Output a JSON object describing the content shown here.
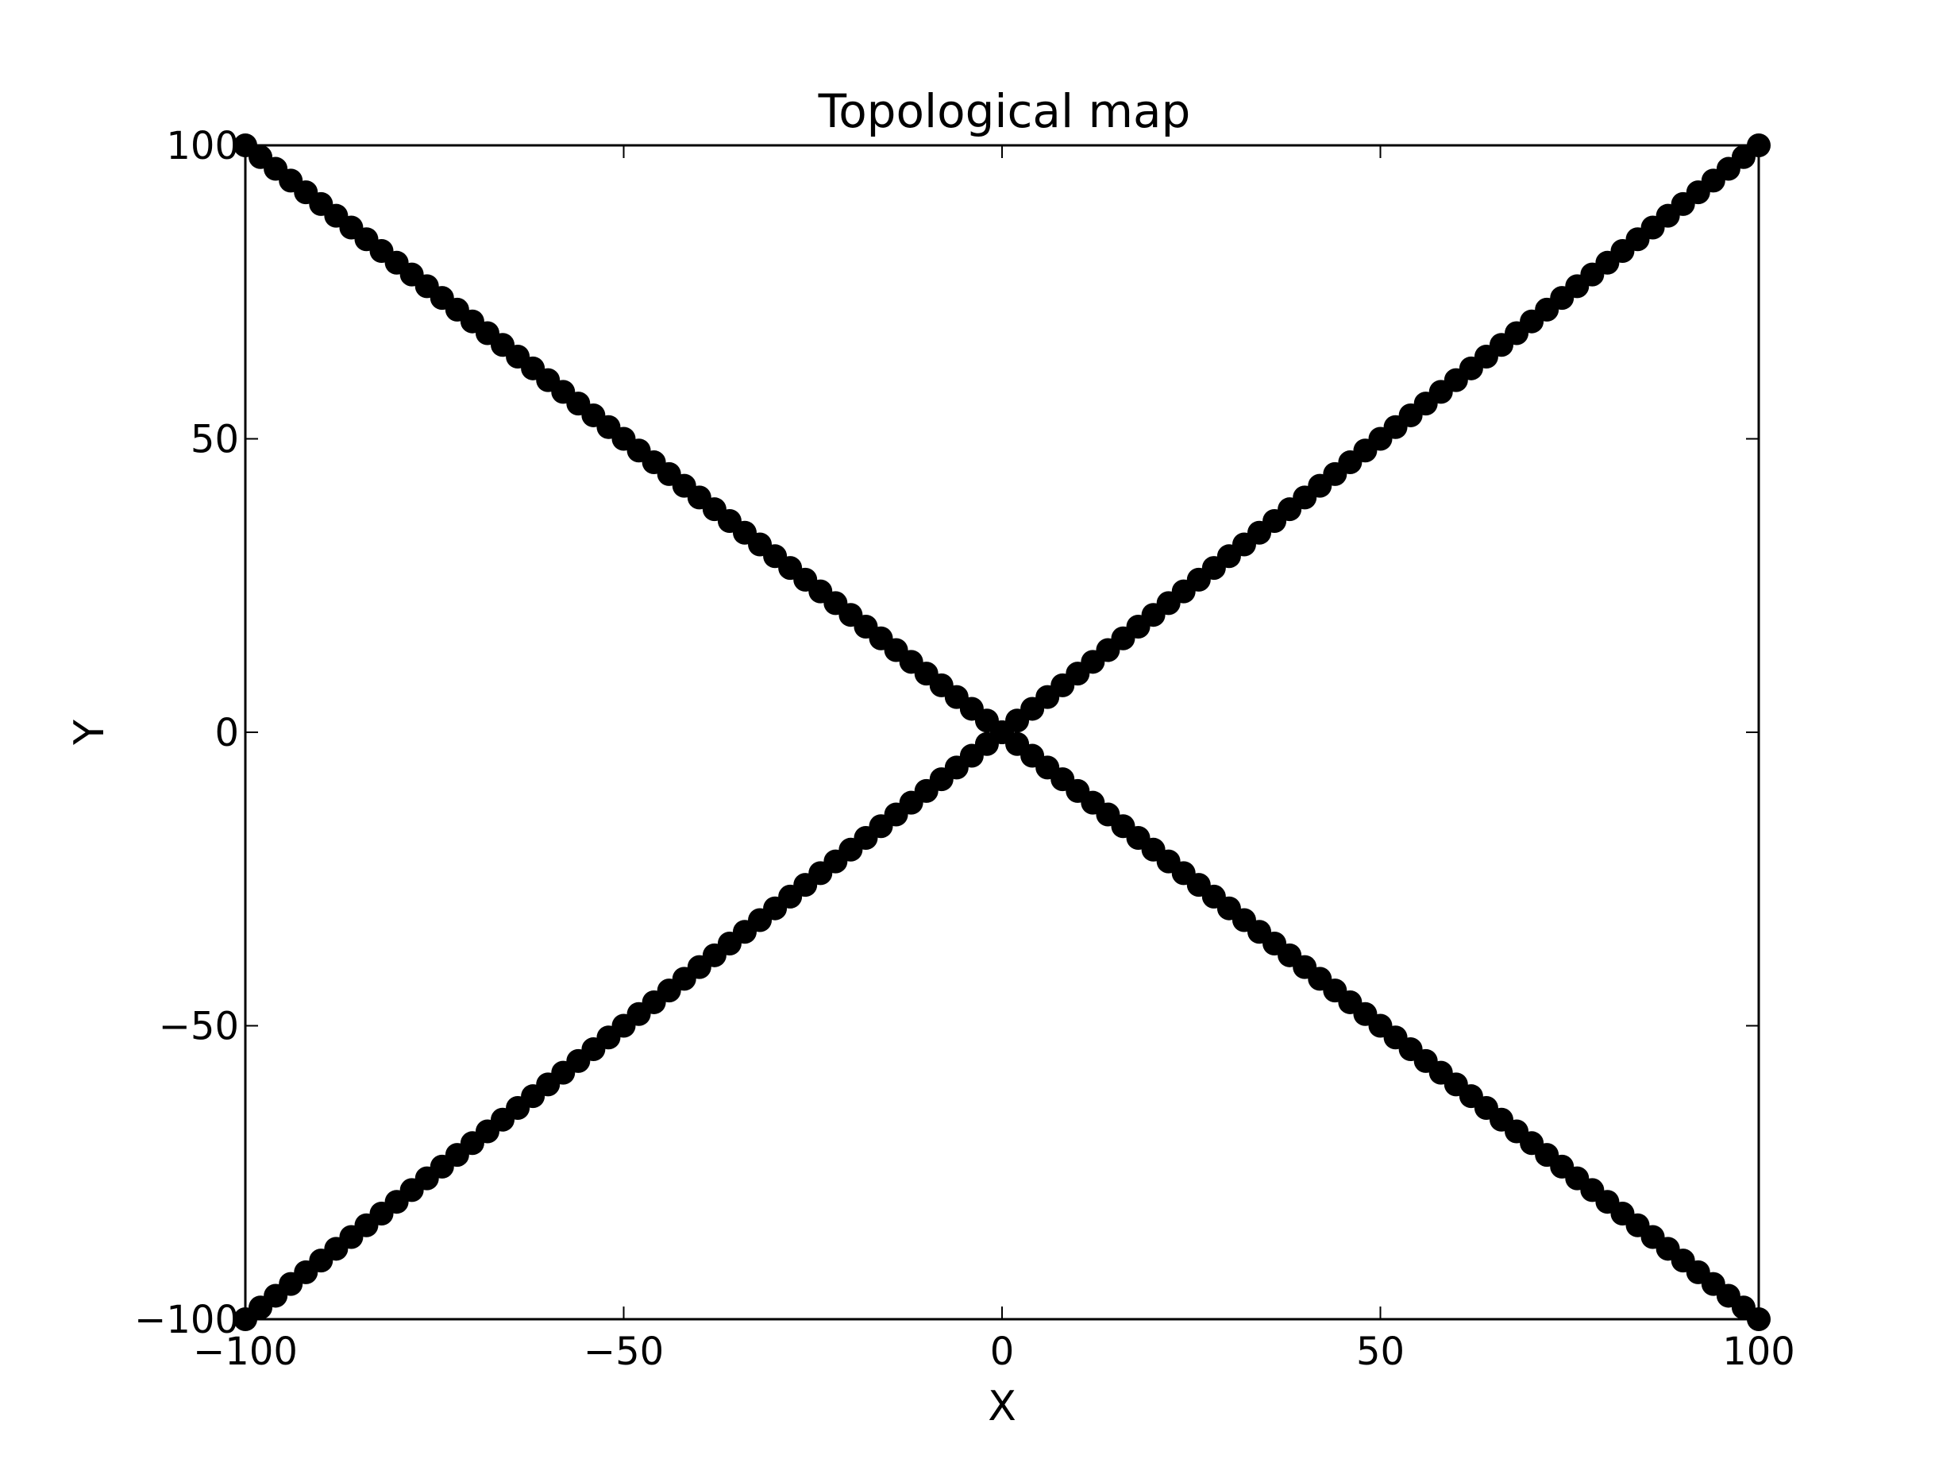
{
  "chart_data": {
    "type": "scatter",
    "title": "Topological map",
    "xlabel": "X",
    "ylabel": "Y",
    "xlim": [
      -100,
      100
    ],
    "ylim": [
      -100,
      100
    ],
    "xticks": [
      -100,
      -50,
      0,
      50,
      100
    ],
    "yticks": [
      -100,
      -50,
      0,
      50,
      100
    ],
    "xtick_labels": [
      "−100",
      "−50",
      "0",
      "50",
      "100"
    ],
    "ytick_labels": [
      "−100",
      "−50",
      "0",
      "50",
      "100"
    ],
    "grid": false,
    "legend": "none",
    "marker_color": "#000000",
    "series": [
      {
        "x": [
          -100,
          -98,
          -96,
          -94,
          -92,
          -90,
          -88,
          -86,
          -84,
          -82,
          -80,
          -78,
          -76,
          -74,
          -72,
          -70,
          -68,
          -66,
          -64,
          -62,
          -60,
          -58,
          -56,
          -54,
          -52,
          -50,
          -48,
          -46,
          -44,
          -42,
          -40,
          -38,
          -36,
          -34,
          -32,
          -30,
          -28,
          -26,
          -24,
          -22,
          -20,
          -18,
          -16,
          -14,
          -12,
          -10,
          -8,
          -6,
          -4,
          -2,
          0,
          2,
          4,
          6,
          8,
          10,
          12,
          14,
          16,
          18,
          20,
          22,
          24,
          26,
          28,
          30,
          32,
          34,
          36,
          38,
          40,
          42,
          44,
          46,
          48,
          50,
          52,
          54,
          56,
          58,
          60,
          62,
          64,
          66,
          68,
          70,
          72,
          74,
          76,
          78,
          80,
          82,
          84,
          86,
          88,
          90,
          92,
          94,
          96,
          98,
          100
        ],
        "y": [
          -100,
          -98,
          -96,
          -94,
          -92,
          -90,
          -88,
          -86,
          -84,
          -82,
          -80,
          -78,
          -76,
          -74,
          -72,
          -70,
          -68,
          -66,
          -64,
          -62,
          -60,
          -58,
          -56,
          -54,
          -52,
          -50,
          -48,
          -46,
          -44,
          -42,
          -40,
          -38,
          -36,
          -34,
          -32,
          -30,
          -28,
          -26,
          -24,
          -22,
          -20,
          -18,
          -16,
          -14,
          -12,
          -10,
          -8,
          -6,
          -4,
          -2,
          0,
          2,
          4,
          6,
          8,
          10,
          12,
          14,
          16,
          18,
          20,
          22,
          24,
          26,
          28,
          30,
          32,
          34,
          36,
          38,
          40,
          42,
          44,
          46,
          48,
          50,
          52,
          54,
          56,
          58,
          60,
          62,
          64,
          66,
          68,
          70,
          72,
          74,
          76,
          78,
          80,
          82,
          84,
          86,
          88,
          90,
          92,
          94,
          96,
          98,
          100
        ]
      },
      {
        "x": [
          -100,
          -98,
          -96,
          -94,
          -92,
          -90,
          -88,
          -86,
          -84,
          -82,
          -80,
          -78,
          -76,
          -74,
          -72,
          -70,
          -68,
          -66,
          -64,
          -62,
          -60,
          -58,
          -56,
          -54,
          -52,
          -50,
          -48,
          -46,
          -44,
          -42,
          -40,
          -38,
          -36,
          -34,
          -32,
          -30,
          -28,
          -26,
          -24,
          -22,
          -20,
          -18,
          -16,
          -14,
          -12,
          -10,
          -8,
          -6,
          -4,
          -2,
          0,
          2,
          4,
          6,
          8,
          10,
          12,
          14,
          16,
          18,
          20,
          22,
          24,
          26,
          28,
          30,
          32,
          34,
          36,
          38,
          40,
          42,
          44,
          46,
          48,
          50,
          52,
          54,
          56,
          58,
          60,
          62,
          64,
          66,
          68,
          70,
          72,
          74,
          76,
          78,
          80,
          82,
          84,
          86,
          88,
          90,
          92,
          94,
          96,
          98,
          100
        ],
        "y": [
          100,
          98,
          96,
          94,
          92,
          90,
          88,
          86,
          84,
          82,
          80,
          78,
          76,
          74,
          72,
          70,
          68,
          66,
          64,
          62,
          60,
          58,
          56,
          54,
          52,
          50,
          48,
          46,
          44,
          42,
          40,
          38,
          36,
          34,
          32,
          30,
          28,
          26,
          24,
          22,
          20,
          18,
          16,
          14,
          12,
          10,
          8,
          6,
          4,
          2,
          0,
          -2,
          -4,
          -6,
          -8,
          -10,
          -12,
          -14,
          -16,
          -18,
          -20,
          -22,
          -24,
          -26,
          -28,
          -30,
          -32,
          -34,
          -36,
          -38,
          -40,
          -42,
          -44,
          -46,
          -48,
          -50,
          -52,
          -54,
          -56,
          -58,
          -60,
          -62,
          -64,
          -66,
          -68,
          -70,
          -72,
          -74,
          -76,
          -78,
          -80,
          -82,
          -84,
          -86,
          -88,
          -90,
          -92,
          -94,
          -96,
          -98,
          -100
        ]
      }
    ]
  }
}
